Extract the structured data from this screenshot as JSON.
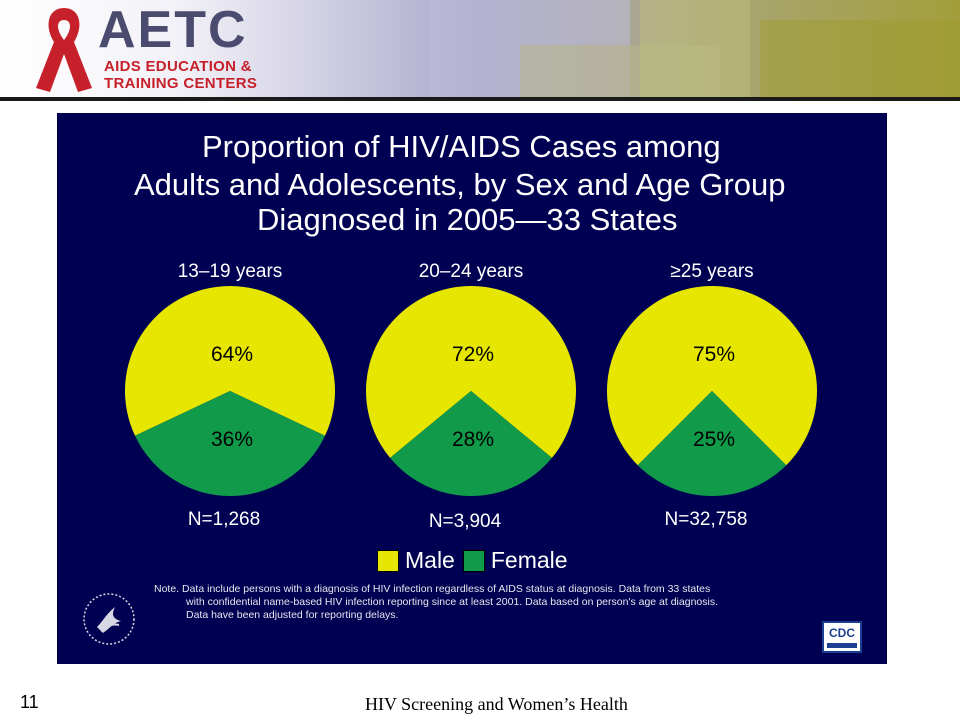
{
  "header": {
    "logo_text": "AETC",
    "logo_subtitle_1": "AIDS EDUCATION &",
    "logo_subtitle_2": "TRAINING CENTERS"
  },
  "chart_data": {
    "type": "pie",
    "title_lines": [
      "Proportion of HIV/AIDS Cases among",
      "Adults and Adolescents, by Sex and Age Group",
      "Diagnosed in 2005—33 States"
    ],
    "series_names": [
      "Male",
      "Female"
    ],
    "colors": {
      "Male": "#e6e600",
      "Female": "#109a4a"
    },
    "pies": [
      {
        "label": "13–19 years",
        "values": [
          64,
          36
        ],
        "value_labels": [
          "64%",
          "36%"
        ],
        "n": "N=1,268"
      },
      {
        "label": "20–24 years",
        "values": [
          72,
          28
        ],
        "value_labels": [
          "72%",
          "28%"
        ],
        "n": "N=3,904"
      },
      {
        "label": "≥25 years",
        "values": [
          75,
          25
        ],
        "value_labels": [
          "75%",
          "25%"
        ],
        "n": "N=32,758"
      }
    ],
    "legend": {
      "items": [
        "Male",
        "Female"
      ],
      "placement": "bottom"
    }
  },
  "note": [
    "Note. Data include persons with a diagnosis of HIV infection regardless of AIDS status at diagnosis. Data from 33 states",
    "with confidential name-based HIV infection reporting since at least 2001. Data based on person's age at diagnosis.",
    "Data have been adjusted for reporting delays."
  ],
  "cdc_logo_text": "CDC",
  "footer": {
    "page_number": "11",
    "title": "HIV Screening and Women’s Health"
  }
}
